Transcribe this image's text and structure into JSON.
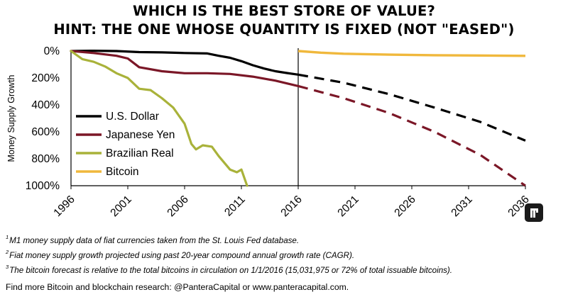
{
  "header": {
    "title_line1": "WHICH IS THE BEST STORE OF VALUE?",
    "title_line2": "HINT: THE ONE WHOSE QUANTITY IS FIXED (NOT \"EASED\")"
  },
  "footnotes": [
    {
      "num": "1",
      "text": "M1 money supply data of fiat currencies taken from the St. Louis Fed database."
    },
    {
      "num": "2",
      "text": "Fiat money supply growth projected using past 20-year compound annual growth rate (CAGR)."
    },
    {
      "num": "3",
      "text": "The bitcoin forecast is relative to the total bitcoins in circulation on 1/1/2016 (15,031,975 or 72% of total issuable bitcoins)."
    }
  ],
  "footer": "Find more Bitcoin and blockchain research: @PanteraCapital or www.panteracapital.com.",
  "colors": {
    "usd": "#000000",
    "jpy": "#7b1727",
    "brl": "#a9b23a",
    "btc": "#f0b83c",
    "background": "#ffffff"
  },
  "logo_icon": "pantera-logo-icon",
  "chart_data": {
    "type": "line",
    "ylabel": "Money Supply Growth",
    "xlabel": "",
    "xlim": [
      1996,
      2036
    ],
    "ylim": [
      0,
      1000
    ],
    "y_inverted": true,
    "x_ticks": [
      "1996",
      "2001",
      "2006",
      "2011",
      "2016",
      "2021",
      "2026",
      "2031",
      "2036"
    ],
    "y_ticks": [
      "0%",
      "200%",
      "400%",
      "600%",
      "800%",
      "1000%"
    ],
    "y_tick_values": [
      0,
      200,
      400,
      600,
      800,
      1000
    ],
    "divider_x": 2016,
    "projection_note": "solid = historical, dashed = projected",
    "legend_placement": "left",
    "series": [
      {
        "name": "U.S. Dollar",
        "key": "usd",
        "historical": {
          "x": [
            1996,
            1998,
            2000,
            2002,
            2004,
            2006,
            2008,
            2009,
            2010,
            2011,
            2012,
            2013,
            2014,
            2015,
            2016
          ],
          "y": [
            0,
            -2,
            0,
            8,
            10,
            15,
            18,
            35,
            50,
            75,
            105,
            130,
            150,
            163,
            175
          ]
        },
        "projected": {
          "x": [
            2016,
            2020,
            2024,
            2028,
            2032,
            2036
          ],
          "y": [
            175,
            235,
            320,
            420,
            525,
            665
          ]
        }
      },
      {
        "name": "Japanese Yen",
        "key": "jpy",
        "historical": {
          "x": [
            1996,
            1998,
            2000,
            2001,
            2002,
            2004,
            2006,
            2008,
            2010,
            2012,
            2014,
            2016
          ],
          "y": [
            0,
            15,
            35,
            55,
            120,
            150,
            165,
            165,
            170,
            190,
            220,
            260
          ]
        },
        "projected": {
          "x": [
            2016,
            2020,
            2024,
            2028,
            2032,
            2036
          ],
          "y": [
            260,
            350,
            460,
            600,
            770,
            1000
          ]
        }
      },
      {
        "name": "Brazilian Real",
        "key": "brl",
        "historical": {
          "x": [
            1996,
            1997,
            1998,
            1999,
            2000,
            2001,
            2002,
            2003,
            2004,
            2005,
            2006,
            2006.6,
            2007,
            2007.6,
            2008.4,
            2009,
            2010,
            2010.6,
            2011,
            2011.5
          ],
          "y": [
            0,
            60,
            80,
            115,
            165,
            200,
            280,
            290,
            350,
            420,
            540,
            690,
            730,
            700,
            710,
            780,
            880,
            900,
            880,
            1000
          ]
        },
        "projected": null
      },
      {
        "name": "Bitcoin",
        "key": "btc",
        "historical": null,
        "projected": {
          "x": [
            2016,
            2018,
            2020,
            2024,
            2028,
            2032,
            2036
          ],
          "y": [
            0,
            12,
            20,
            27,
            31,
            33,
            36
          ]
        }
      }
    ]
  }
}
